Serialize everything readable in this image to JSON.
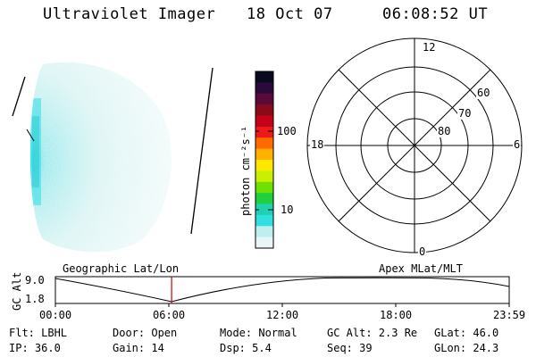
{
  "header": {
    "title": "Ultraviolet Imager",
    "date": "18 Oct 07",
    "time": "06:08:52 UT"
  },
  "colorbar": {
    "label": "photon cm⁻²s⁻¹",
    "ticks": [
      "100",
      "10"
    ],
    "colors": [
      "#0a0a1e",
      "#2a0a3a",
      "#5a0a3a",
      "#8a0a1a",
      "#c4001a",
      "#ee1a1a",
      "#ff6a00",
      "#ffb000",
      "#ffe800",
      "#c8f000",
      "#70e000",
      "#20d040",
      "#20d0b0",
      "#30e0e0",
      "#bfeeee",
      "#e8f6f6"
    ]
  },
  "polar": {
    "labels": {
      "top": "12",
      "bottom": "0",
      "left": "18",
      "right": "6",
      "ring60": "60",
      "ring70": "70",
      "ring80": "80"
    }
  },
  "timeline": {
    "left_label": "Geographic Lat/Lon",
    "right_label": "Apex MLat/MLT",
    "y_axis_label": "GC Alt",
    "y_ticks": [
      "9.0",
      "1.8"
    ],
    "x_ticks": [
      "00:00",
      "06:00",
      "12:00",
      "18:00",
      "23:59"
    ],
    "current_fraction": 0.2562,
    "marker_color": "#cc0000"
  },
  "status": {
    "flt": "Flt: LBHL",
    "door": "Door: Open",
    "mode": "Mode: Normal",
    "gc_alt": "GC Alt: 2.3 Re",
    "glat": "GLat:  46.0",
    "ip": "IP: 36.0",
    "gain": "Gain: 14",
    "dsp": "Dsp:    5.4",
    "seq": "Seq: 39",
    "glon": "GLon:  24.3"
  }
}
